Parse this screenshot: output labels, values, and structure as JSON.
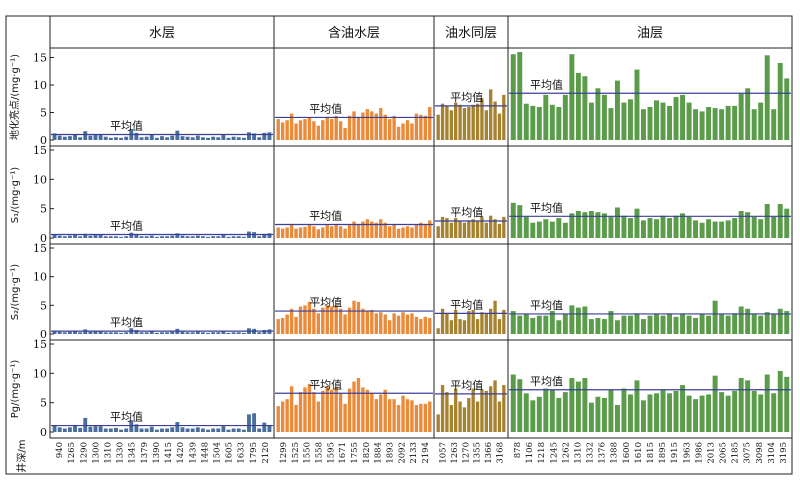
{
  "chart_data": {
    "type": "bar",
    "zones": [
      {
        "name": "水层",
        "color": "#4a6e9c",
        "depths": [
          "940",
          "1265",
          "1290",
          "1300",
          "1310",
          "1330",
          "1345",
          "1379",
          "1390",
          "1415",
          "1420",
          "1439",
          "1448",
          "1504",
          "1605",
          "1633",
          "1795",
          "2120"
        ]
      },
      {
        "name": "含油水层",
        "color": "#e98b3a",
        "depths": [
          "1299",
          "1525",
          "1550",
          "1558",
          "1595",
          "1671",
          "1755",
          "1820",
          "1884",
          "1893",
          "2092",
          "2133",
          "2194"
        ]
      },
      {
        "name": "油水同层",
        "color": "#a5822f",
        "depths": [
          "1057",
          "1263",
          "1270",
          "1355",
          "1366",
          "3168"
        ]
      },
      {
        "name": "油层",
        "color": "#5a9c4a",
        "depths": [
          "878",
          "1106",
          "1218",
          "1245",
          "1262",
          "1310",
          "1332",
          "1376",
          "1388",
          "1600",
          "1610",
          "1815",
          "1895",
          "1915",
          "1963",
          "1986",
          "2013",
          "2065",
          "2185",
          "3075",
          "3098",
          "3104",
          "3195"
        ]
      }
    ],
    "panels": [
      {
        "ylabel": "地化亮点/(mg·g⁻¹)",
        "avg_label": "平均值",
        "ylim": [
          0,
          16
        ],
        "yticks": [
          0,
          5,
          10,
          15
        ],
        "series": [
          {
            "values": [
              1.2,
              0.8,
              0.6,
              0.7,
              1.0,
              0.5,
              1.6,
              0.8,
              1.0,
              0.9,
              0.6,
              0.4,
              0.5,
              0.4,
              0.6,
              2.0,
              1.3,
              0.5,
              0.6,
              0.9,
              0.4,
              0.7,
              0.5,
              0.8,
              1.7,
              0.7,
              0.6,
              0.5,
              0.8,
              0.5,
              0.4,
              0.6,
              0.5,
              0.9,
              0.4,
              0.6,
              0.5,
              0.4,
              1.4,
              1.2,
              0.5,
              1.3,
              1.4
            ],
            "avg": 1.0
          },
          {
            "values": [
              3.8,
              3.2,
              3.6,
              4.8,
              3.0,
              3.6,
              3.8,
              4.0,
              3.4,
              2.6,
              3.6,
              4.2,
              3.8,
              4.4,
              3.4,
              2.2,
              4.4,
              5.2,
              4.2,
              5.0,
              5.6,
              5.2,
              4.8,
              5.8,
              4.6,
              3.8,
              4.4,
              2.4,
              3.0,
              3.6,
              3.0,
              4.8,
              4.6,
              4.4,
              6.0
            ],
            "avg": 4.1
          },
          {
            "values": [
              4.6,
              6.6,
              6.2,
              5.4,
              6.8,
              6.4,
              5.8,
              6.0,
              6.4,
              6.6,
              7.6,
              5.4,
              9.2,
              7.0,
              4.8,
              8.2
            ],
            "avg": 6.2
          },
          {
            "values": [
              15.6,
              16.0,
              6.6,
              6.2,
              6.0,
              8.2,
              6.4,
              6.0,
              8.2,
              15.6,
              12.2,
              11.6,
              6.8,
              9.4,
              8.2,
              5.8,
              10.8,
              6.8,
              7.4,
              12.8,
              5.6,
              6.0,
              7.2,
              6.8,
              6.2,
              7.8,
              8.2,
              6.8,
              5.6,
              5.2,
              6.0,
              5.8,
              5.6,
              6.2,
              6.2,
              8.4,
              9.4,
              5.6,
              6.8,
              15.4,
              5.6,
              14.0,
              11.2
            ],
            "avg": 8.5
          }
        ]
      },
      {
        "ylabel": "S₁/(mg·g⁻¹)",
        "avg_label": "平均值",
        "ylim": [
          0,
          15
        ],
        "yticks": [
          0,
          5,
          10,
          15
        ],
        "series": [
          {
            "values": [
              0.6,
              0.4,
              0.3,
              0.4,
              0.6,
              0.3,
              0.7,
              0.4,
              0.5,
              0.5,
              0.3,
              0.3,
              0.3,
              0.2,
              0.3,
              0.9,
              0.6,
              0.3,
              0.3,
              0.4,
              0.2,
              0.3,
              0.3,
              0.4,
              0.8,
              0.4,
              0.3,
              0.3,
              0.4,
              0.3,
              0.2,
              0.3,
              0.3,
              0.5,
              0.2,
              0.3,
              0.3,
              0.2,
              1.1,
              1.0,
              0.3,
              0.7,
              0.8
            ],
            "avg": 0.6
          },
          {
            "values": [
              1.8,
              1.6,
              1.8,
              2.4,
              1.6,
              1.8,
              1.9,
              2.2,
              2.0,
              1.5,
              1.8,
              2.2,
              2.0,
              2.4,
              2.0,
              1.6,
              2.2,
              2.8,
              2.4,
              2.8,
              3.2,
              2.8,
              2.6,
              3.2,
              2.6,
              2.0,
              2.4,
              1.6,
              1.8,
              2.0,
              1.8,
              2.4,
              2.6,
              2.4,
              3.0
            ],
            "avg": 2.3
          },
          {
            "values": [
              2.0,
              3.6,
              3.4,
              2.6,
              3.4,
              2.8,
              2.6,
              3.0,
              3.2,
              2.8,
              3.6,
              2.6,
              3.8,
              3.2,
              2.4,
              3.6
            ],
            "avg": 2.9
          },
          {
            "values": [
              6.0,
              5.6,
              3.6,
              2.6,
              2.8,
              3.2,
              2.8,
              3.4,
              2.6,
              4.2,
              4.6,
              4.4,
              4.6,
              4.4,
              4.2,
              3.6,
              5.2,
              3.8,
              3.4,
              5.0,
              3.0,
              3.4,
              3.2,
              3.8,
              3.4,
              3.8,
              4.2,
              3.6,
              3.0,
              2.6,
              3.2,
              2.8,
              2.8,
              3.0,
              3.4,
              4.6,
              4.4,
              3.6,
              3.2,
              5.8,
              3.6,
              5.8,
              5.0
            ],
            "avg": 3.7
          }
        ]
      },
      {
        "ylabel": "S₂/(mg·g⁻¹)",
        "avg_label": "平均值",
        "ylim": [
          0,
          15
        ],
        "yticks": [
          0,
          5,
          10,
          15
        ],
        "series": [
          {
            "values": [
              0.6,
              0.4,
              0.3,
              0.4,
              0.6,
              0.3,
              0.8,
              0.4,
              0.5,
              0.5,
              0.3,
              0.3,
              0.3,
              0.2,
              0.3,
              1.0,
              0.7,
              0.3,
              0.3,
              0.5,
              0.2,
              0.3,
              0.3,
              0.4,
              0.9,
              0.4,
              0.3,
              0.3,
              0.4,
              0.3,
              0.2,
              0.3,
              0.3,
              0.5,
              0.2,
              0.3,
              0.3,
              0.2,
              1.0,
              0.9,
              0.3,
              0.7,
              0.8
            ],
            "avg": 0.5
          },
          {
            "values": [
              2.6,
              2.8,
              3.4,
              4.4,
              3.0,
              4.8,
              5.0,
              5.6,
              4.4,
              3.6,
              4.6,
              5.0,
              4.8,
              5.0,
              4.4,
              3.4,
              4.6,
              5.8,
              5.6,
              4.4,
              4.0,
              4.2,
              3.6,
              3.8,
              3.4,
              2.4,
              3.6,
              3.2,
              3.8,
              3.4,
              3.6,
              3.0,
              2.6,
              3.0,
              2.8
            ],
            "avg": 4.0
          },
          {
            "values": [
              1.0,
              4.4,
              3.6,
              2.4,
              4.2,
              2.6,
              2.4,
              4.0,
              4.2,
              2.6,
              3.8,
              3.6,
              4.4,
              5.8,
              2.6,
              4.2
            ],
            "avg": 3.6
          },
          {
            "values": [
              4.0,
              3.2,
              3.4,
              2.8,
              3.2,
              3.2,
              4.0,
              2.4,
              3.4,
              5.0,
              4.6,
              4.8,
              2.6,
              2.8,
              2.6,
              4.0,
              2.4,
              3.2,
              3.2,
              3.6,
              2.6,
              3.2,
              3.4,
              3.2,
              3.6,
              3.0,
              3.6,
              3.2,
              2.8,
              3.4,
              3.2,
              5.8,
              3.4,
              3.2,
              3.6,
              4.8,
              4.4,
              3.6,
              3.2,
              3.8,
              3.4,
              4.4,
              4.0
            ],
            "avg": 3.5
          }
        ]
      },
      {
        "ylabel": "Pg/(mg·g⁻¹)",
        "avg_label": "平均值",
        "ylim": [
          0,
          15
        ],
        "yticks": [
          0,
          5,
          10,
          15
        ],
        "series": [
          {
            "values": [
              1.2,
              0.8,
              0.6,
              0.8,
              1.2,
              0.7,
              2.4,
              0.9,
              1.0,
              1.0,
              0.6,
              0.6,
              0.7,
              0.4,
              0.6,
              2.0,
              1.3,
              0.6,
              0.6,
              0.9,
              0.4,
              0.6,
              0.6,
              0.8,
              1.7,
              0.8,
              0.6,
              0.6,
              0.8,
              0.6,
              0.4,
              0.6,
              0.6,
              1.0,
              0.4,
              0.6,
              0.6,
              0.4,
              3.0,
              3.2,
              0.6,
              1.6,
              1.2
            ],
            "avg": 1.1
          },
          {
            "values": [
              4.4,
              5.2,
              5.6,
              7.8,
              4.6,
              6.8,
              7.6,
              8.2,
              6.8,
              5.2,
              7.0,
              7.8,
              7.2,
              7.6,
              6.6,
              4.8,
              7.4,
              8.6,
              9.2,
              7.6,
              7.2,
              6.6,
              5.6,
              6.4,
              7.2,
              5.6,
              5.6,
              4.6,
              6.2,
              5.6,
              5.4,
              4.6,
              4.8,
              4.8,
              5.2
            ],
            "avg": 6.6
          },
          {
            "values": [
              3.0,
              8.0,
              6.8,
              4.6,
              7.4,
              5.2,
              4.2,
              5.8,
              7.4,
              5.2,
              7.2,
              7.0,
              7.8,
              8.8,
              5.2,
              8.0
            ],
            "avg": 6.5
          },
          {
            "values": [
              9.8,
              9.0,
              6.6,
              5.4,
              6.0,
              7.4,
              7.2,
              5.8,
              6.8,
              9.2,
              8.6,
              9.2,
              5.0,
              6.0,
              5.8,
              7.2,
              4.6,
              7.4,
              6.4,
              8.8,
              5.4,
              6.4,
              6.6,
              7.2,
              6.6,
              7.0,
              8.0,
              6.2,
              5.6,
              6.2,
              6.4,
              9.6,
              6.8,
              6.2,
              7.0,
              9.2,
              8.8,
              7.0,
              6.4,
              9.8,
              6.6,
              10.4,
              9.4
            ],
            "avg": 7.2
          }
        ]
      }
    ],
    "xlabel": "井深/m"
  }
}
